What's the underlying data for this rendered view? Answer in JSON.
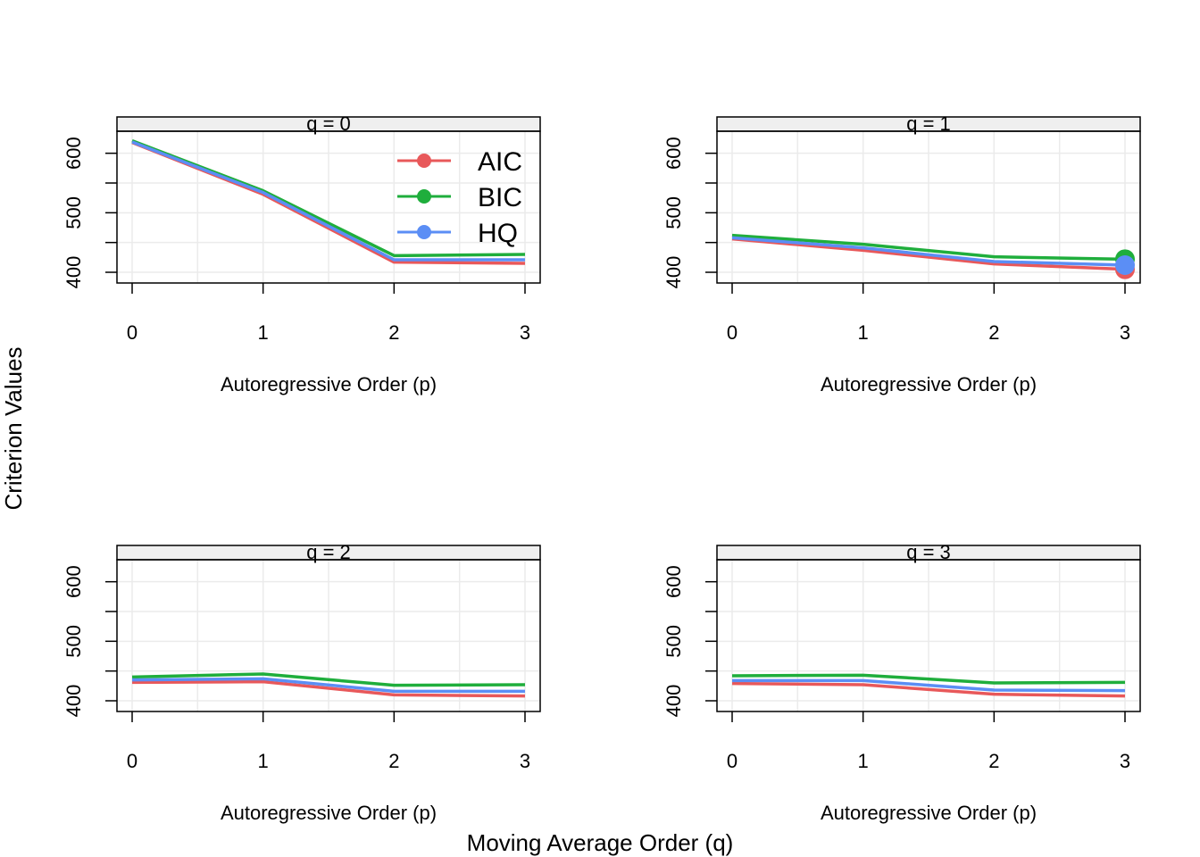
{
  "figure": {
    "ylabel": "Criterion Values",
    "xlabel": "Moving Average Order (q)"
  },
  "colors": {
    "AIC": "#E8585A",
    "BIC": "#1FAE3C",
    "HQ": "#5B8EF5"
  },
  "chart_data": [
    {
      "type": "line",
      "strip": "q = 0",
      "xlabel": "Autoregressive Order (p)",
      "x": [
        0,
        1,
        2,
        3
      ],
      "ylim": [
        382,
        637
      ],
      "yticks": [
        400,
        500,
        600
      ],
      "legend": {
        "placement": "top-right",
        "entries": [
          "AIC",
          "BIC",
          "HQ"
        ]
      },
      "series": [
        {
          "name": "AIC",
          "values": [
            618,
            531,
            417,
            415
          ]
        },
        {
          "name": "BIC",
          "values": [
            621,
            537,
            428,
            430
          ]
        },
        {
          "name": "HQ",
          "values": [
            619,
            534,
            421,
            421
          ]
        }
      ],
      "highlight": null
    },
    {
      "type": "line",
      "strip": "q = 1",
      "xlabel": "Autoregressive Order (p)",
      "x": [
        0,
        1,
        2,
        3
      ],
      "ylim": [
        382,
        637
      ],
      "yticks": [
        400,
        500,
        600
      ],
      "series": [
        {
          "name": "AIC",
          "values": [
            456,
            437,
            414,
            405
          ]
        },
        {
          "name": "BIC",
          "values": [
            462,
            447,
            426,
            422
          ]
        },
        {
          "name": "HQ",
          "values": [
            458,
            441,
            418,
            412
          ]
        }
      ],
      "highlight": {
        "x": 3,
        "values": {
          "AIC": 405,
          "BIC": 422,
          "HQ": 412
        }
      }
    },
    {
      "type": "line",
      "strip": "q = 2",
      "xlabel": "Autoregressive Order (p)",
      "x": [
        0,
        1,
        2,
        3
      ],
      "ylim": [
        382,
        637
      ],
      "yticks": [
        400,
        500,
        600
      ],
      "series": [
        {
          "name": "AIC",
          "values": [
            431,
            432,
            410,
            408
          ]
        },
        {
          "name": "BIC",
          "values": [
            440,
            445,
            426,
            427
          ]
        },
        {
          "name": "HQ",
          "values": [
            435,
            437,
            416,
            416
          ]
        }
      ],
      "highlight": null
    },
    {
      "type": "line",
      "strip": "q = 3",
      "xlabel": "Autoregressive Order (p)",
      "x": [
        0,
        1,
        2,
        3
      ],
      "ylim": [
        382,
        637
      ],
      "yticks": [
        400,
        500,
        600
      ],
      "series": [
        {
          "name": "AIC",
          "values": [
            429,
            427,
            411,
            408
          ]
        },
        {
          "name": "BIC",
          "values": [
            442,
            443,
            430,
            431
          ]
        },
        {
          "name": "HQ",
          "values": [
            434,
            434,
            418,
            417
          ]
        }
      ],
      "highlight": null
    }
  ]
}
